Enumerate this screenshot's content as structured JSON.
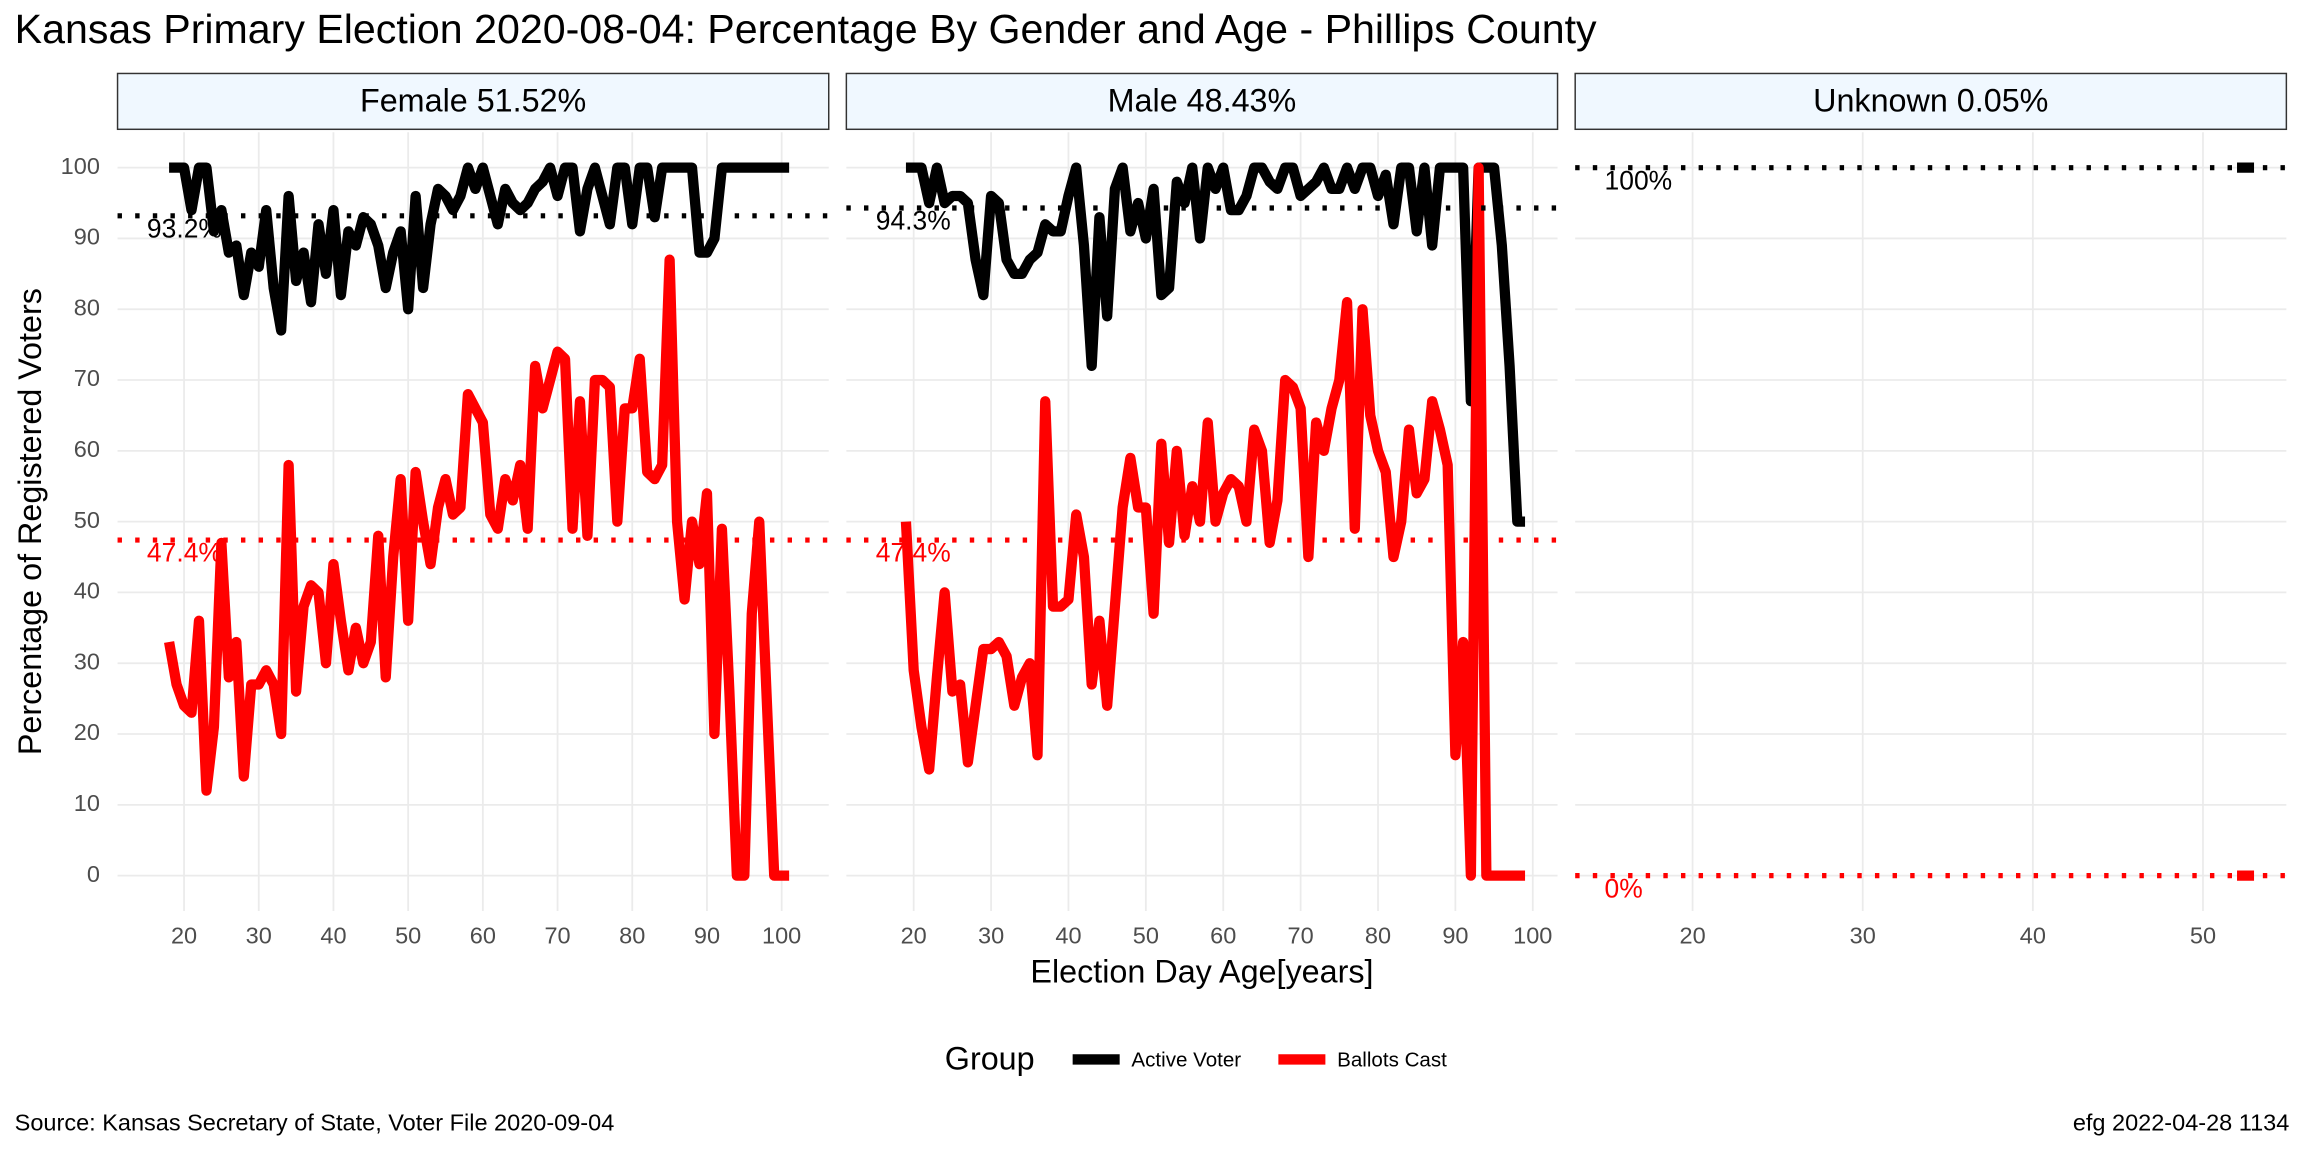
{
  "chart_data": {
    "type": "line",
    "title": "Kansas Primary Election 2020-08-04:  Percentage By Gender and Age - Phillips County",
    "xlabel": "Election Day Age[years]",
    "ylabel": "Percentage of Registered Voters",
    "legend_title": "Group",
    "source": "Source:  Kansas Secretary of State, Voter File  2020-09-04",
    "stamp": "efg 2022-04-28 1134",
    "grid": true,
    "ylim": [
      -5,
      105
    ],
    "yticks": [
      0,
      10,
      20,
      30,
      40,
      50,
      60,
      70,
      80,
      90,
      100
    ],
    "panels": [
      {
        "title": "Female 51.52%",
        "xlim": [
          11.1,
          106.3
        ],
        "xticks": [
          20,
          30,
          40,
          50,
          60,
          70,
          80,
          90,
          100
        ],
        "reference_lines": [
          {
            "value": 93.2,
            "label": "93.2%",
            "color": "#000000"
          },
          {
            "value": 47.4,
            "label": "47.4%",
            "color": "#ff0000"
          }
        ],
        "series": [
          {
            "name": "Active Voter",
            "color": "#000000",
            "x": [
              18,
              19,
              20,
              21,
              22,
              23,
              24,
              25,
              26,
              27,
              28,
              29,
              30,
              31,
              32,
              33,
              34,
              35,
              36,
              37,
              38,
              39,
              40,
              41,
              42,
              43,
              44,
              45,
              46,
              47,
              48,
              49,
              50,
              51,
              52,
              53,
              54,
              55,
              56,
              57,
              58,
              59,
              60,
              61,
              62,
              63,
              64,
              65,
              66,
              67,
              68,
              69,
              70,
              71,
              72,
              73,
              74,
              75,
              76,
              77,
              78,
              79,
              80,
              81,
              82,
              83,
              84,
              85,
              86,
              87,
              88,
              89,
              90,
              91,
              92,
              93,
              94,
              95,
              96,
              97,
              98,
              99,
              100,
              101
            ],
            "values": [
              100,
              100,
              100,
              94,
              100,
              100,
              91,
              94,
              88,
              89,
              82,
              88,
              86,
              94,
              83,
              77,
              96,
              84,
              88,
              81,
              92,
              85,
              94,
              82,
              91,
              89,
              93,
              92,
              89,
              83,
              88,
              91,
              80,
              96,
              83,
              92,
              97,
              96,
              94,
              96,
              100,
              97,
              100,
              96,
              92,
              97,
              95,
              94,
              95,
              97,
              98,
              100,
              96,
              100,
              100,
              91,
              97,
              100,
              96,
              92,
              100,
              100,
              92,
              100,
              100,
              93,
              100,
              100,
              100,
              100,
              100,
              88,
              88,
              90,
              100,
              100,
              100,
              100,
              100,
              100,
              100,
              100,
              100,
              100
            ]
          },
          {
            "name": "Ballots Cast",
            "color": "#ff0000",
            "x": [
              18,
              19,
              20,
              21,
              22,
              23,
              24,
              25,
              26,
              27,
              28,
              29,
              30,
              31,
              32,
              33,
              34,
              35,
              36,
              37,
              38,
              39,
              40,
              41,
              42,
              43,
              44,
              45,
              46,
              47,
              48,
              49,
              50,
              51,
              52,
              53,
              54,
              55,
              56,
              57,
              58,
              59,
              60,
              61,
              62,
              63,
              64,
              65,
              66,
              67,
              68,
              69,
              70,
              71,
              72,
              73,
              74,
              75,
              76,
              77,
              78,
              79,
              80,
              81,
              82,
              83,
              84,
              85,
              86,
              87,
              88,
              89,
              90,
              91,
              92,
              93,
              94,
              95,
              96,
              97,
              98,
              99,
              100,
              101
            ],
            "values": [
              33,
              27,
              24,
              23,
              36,
              12,
              21,
              47,
              28,
              33,
              14,
              27,
              27,
              29,
              27,
              20,
              58,
              26,
              38,
              41,
              40,
              30,
              44,
              36,
              29,
              35,
              30,
              33,
              48,
              28,
              45,
              56,
              36,
              57,
              50,
              44,
              52,
              56,
              51,
              52,
              68,
              66,
              64,
              51,
              49,
              56,
              53,
              58,
              49,
              72,
              66,
              70,
              74,
              73,
              49,
              67,
              48,
              70,
              70,
              69,
              50,
              66,
              66,
              73,
              57,
              56,
              58,
              87,
              50,
              39,
              50,
              44,
              54,
              20,
              49,
              26,
              0,
              0,
              37,
              50,
              25,
              0,
              0,
              0
            ]
          }
        ]
      },
      {
        "title": "Male 48.43%",
        "xlim": [
          11.3,
          103.2
        ],
        "xticks": [
          20,
          30,
          40,
          50,
          60,
          70,
          80,
          90,
          100
        ],
        "reference_lines": [
          {
            "value": 94.3,
            "label": "94.3%",
            "color": "#000000"
          },
          {
            "value": 47.4,
            "label": "47.4%",
            "color": "#ff0000"
          }
        ],
        "series": [
          {
            "name": "Active Voter",
            "color": "#000000",
            "x": [
              19,
              20,
              21,
              22,
              23,
              24,
              25,
              26,
              27,
              28,
              29,
              30,
              31,
              32,
              33,
              34,
              35,
              36,
              37,
              38,
              39,
              40,
              41,
              42,
              43,
              44,
              45,
              46,
              47,
              48,
              49,
              50,
              51,
              52,
              53,
              54,
              55,
              56,
              57,
              58,
              59,
              60,
              61,
              62,
              63,
              64,
              65,
              66,
              67,
              68,
              69,
              70,
              71,
              72,
              73,
              74,
              75,
              76,
              77,
              78,
              79,
              80,
              81,
              82,
              83,
              84,
              85,
              86,
              87,
              88,
              89,
              90,
              91,
              92,
              93,
              94,
              95,
              96,
              97,
              98,
              99
            ],
            "values": [
              100,
              100,
              100,
              95,
              100,
              95,
              96,
              96,
              95,
              87,
              82,
              96,
              95,
              87,
              85,
              85,
              87,
              88,
              92,
              91,
              91,
              96,
              100,
              89,
              72,
              93,
              79,
              97,
              100,
              91,
              95,
              90,
              97,
              82,
              83,
              98,
              95,
              100,
              90,
              100,
              97,
              100,
              94,
              94,
              96,
              100,
              100,
              98,
              97,
              100,
              100,
              96,
              97,
              98,
              100,
              97,
              97,
              100,
              97,
              100,
              100,
              96,
              99,
              92,
              100,
              100,
              91,
              100,
              89,
              100,
              100,
              100,
              100,
              67,
              100,
              100,
              100,
              89,
              72,
              50,
              50
            ]
          },
          {
            "name": "Ballots Cast",
            "color": "#ff0000",
            "x": [
              19,
              20,
              21,
              22,
              23,
              24,
              25,
              26,
              27,
              28,
              29,
              30,
              31,
              32,
              33,
              34,
              35,
              36,
              37,
              38,
              39,
              40,
              41,
              42,
              43,
              44,
              45,
              46,
              47,
              48,
              49,
              50,
              51,
              52,
              53,
              54,
              55,
              56,
              57,
              58,
              59,
              60,
              61,
              62,
              63,
              64,
              65,
              66,
              67,
              68,
              69,
              70,
              71,
              72,
              73,
              74,
              75,
              76,
              77,
              78,
              79,
              80,
              81,
              82,
              83,
              84,
              85,
              86,
              87,
              88,
              89,
              90,
              91,
              92,
              93,
              94,
              95,
              96,
              97,
              98,
              99
            ],
            "values": [
              50,
              29,
              21,
              15,
              28,
              40,
              26,
              27,
              16,
              24,
              32,
              32,
              33,
              31,
              24,
              28,
              30,
              17,
              67,
              38,
              38,
              39,
              51,
              45,
              27,
              36,
              24,
              38,
              52,
              59,
              52,
              52,
              37,
              61,
              47,
              60,
              48,
              55,
              50,
              64,
              50,
              54,
              56,
              55,
              50,
              63,
              60,
              47,
              53,
              70,
              69,
              66,
              45,
              64,
              60,
              66,
              70,
              81,
              49,
              80,
              65,
              60,
              57,
              45,
              50,
              63,
              54,
              56,
              67,
              63,
              58,
              17,
              33,
              0,
              100,
              0,
              0,
              0,
              0,
              0,
              0
            ]
          }
        ]
      },
      {
        "title": "Unknown 0.05%",
        "xlim": [
          13.1,
          54.9
        ],
        "xticks": [
          20,
          30,
          40,
          50
        ],
        "reference_lines": [
          {
            "value": 100,
            "label": "100%",
            "color": "#000000"
          },
          {
            "value": 0,
            "label": "0%",
            "color": "#ff0000"
          }
        ],
        "series": [
          {
            "name": "Active Voter",
            "color": "#000000",
            "x": [
              52,
              53
            ],
            "values": [
              100,
              100
            ]
          },
          {
            "name": "Ballots Cast",
            "color": "#ff0000",
            "x": [
              52,
              53
            ],
            "values": [
              0,
              0
            ]
          }
        ]
      }
    ]
  }
}
